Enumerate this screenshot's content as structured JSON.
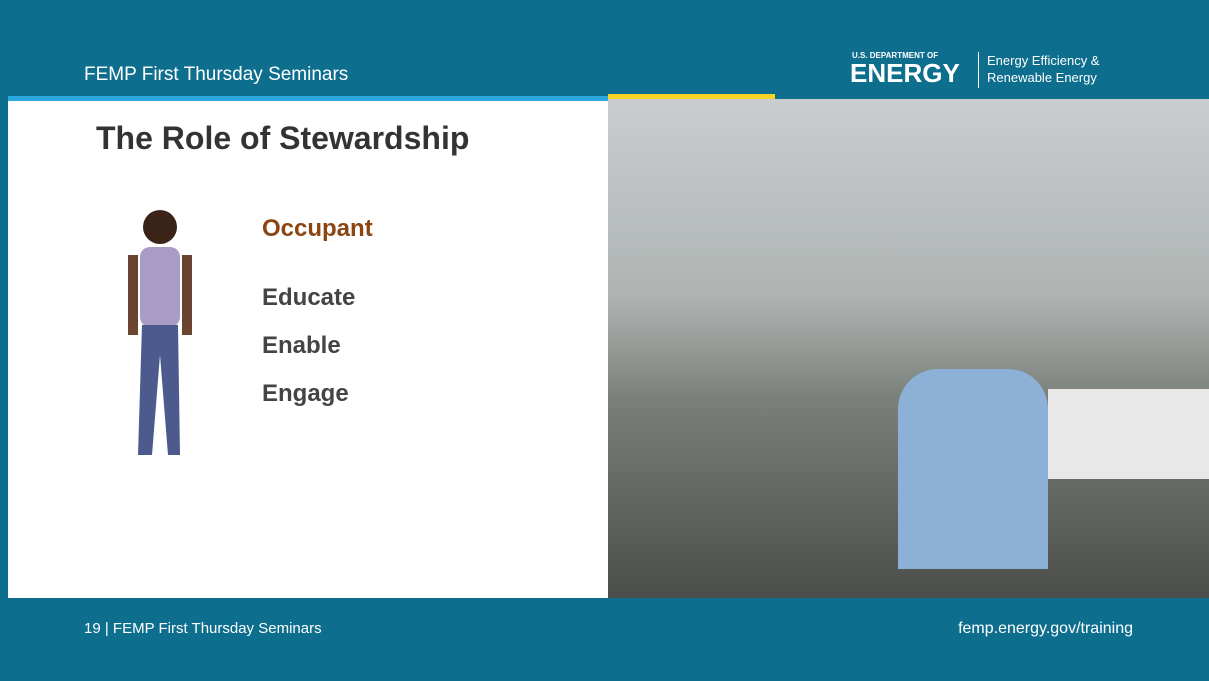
{
  "header": {
    "series": "FEMP First Thursday Seminars",
    "logo_top": "U.S. DEPARTMENT OF",
    "logo_main": "ENERGY",
    "logo_right_1": "Energy Efficiency &",
    "logo_right_2": "Renewable Energy"
  },
  "slide": {
    "title": "The Role of Stewardship",
    "subtitle": "Occupant",
    "items": [
      "Educate",
      "Enable",
      "Engage"
    ]
  },
  "footer": {
    "page": "19 | FEMP First Thursday Seminars",
    "url": "femp.energy.gov/training"
  }
}
